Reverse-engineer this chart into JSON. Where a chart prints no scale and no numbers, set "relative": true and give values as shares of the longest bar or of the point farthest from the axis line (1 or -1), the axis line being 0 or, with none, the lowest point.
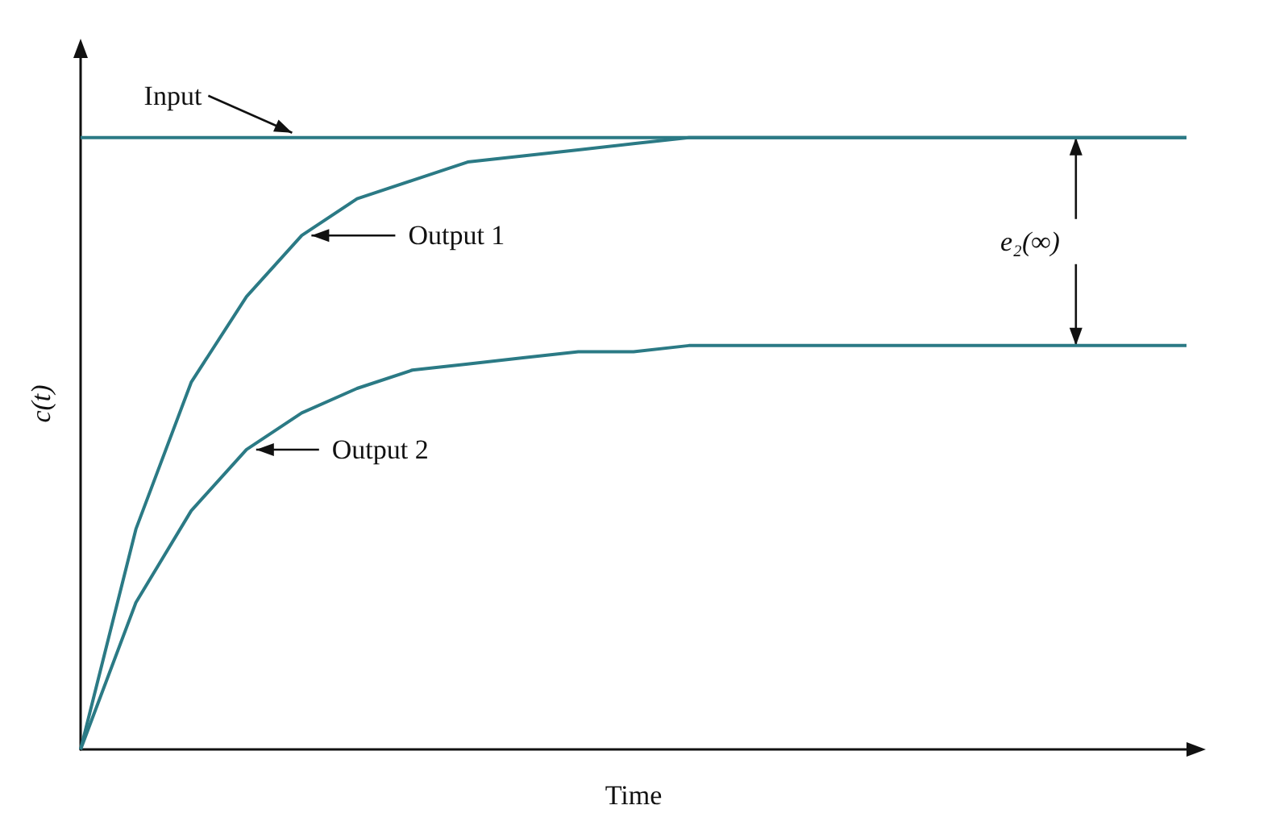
{
  "chart_data": {
    "type": "line",
    "relative": true,
    "xlabel": "Time",
    "ylabel": "c(t)",
    "marker": "none",
    "line_style": "solid",
    "grid": false,
    "legend": false,
    "categories": [
      null,
      null,
      null,
      null,
      null,
      null,
      null,
      null,
      null,
      null,
      null,
      null,
      null,
      null,
      null,
      null,
      null,
      null,
      null,
      null,
      null
    ],
    "series": [
      {
        "name": "Input",
        "color": "#2b7a85",
        "values": [
          1,
          1,
          1,
          1,
          1,
          1,
          1,
          1,
          1,
          1,
          1,
          1,
          1,
          1,
          1,
          1,
          1,
          1,
          1,
          1,
          1
        ]
      },
      {
        "name": "Output 1",
        "color": "#2b7a85",
        "values": [
          0,
          0.36,
          0.6,
          0.74,
          0.84,
          0.9,
          0.93,
          0.96,
          0.97,
          0.98,
          0.99,
          1,
          1,
          1,
          1,
          1,
          1,
          1,
          1,
          1,
          1
        ]
      },
      {
        "name": "Output 2",
        "color": "#2b7a85",
        "values": [
          0,
          0.24,
          0.39,
          0.49,
          0.55,
          0.59,
          0.62,
          0.63,
          0.64,
          0.65,
          0.65,
          0.66,
          0.66,
          0.66,
          0.66,
          0.66,
          0.66,
          0.66,
          0.66,
          0.66,
          0.66
        ]
      }
    ],
    "annotations": [
      "e₂(∞)"
    ]
  }
}
